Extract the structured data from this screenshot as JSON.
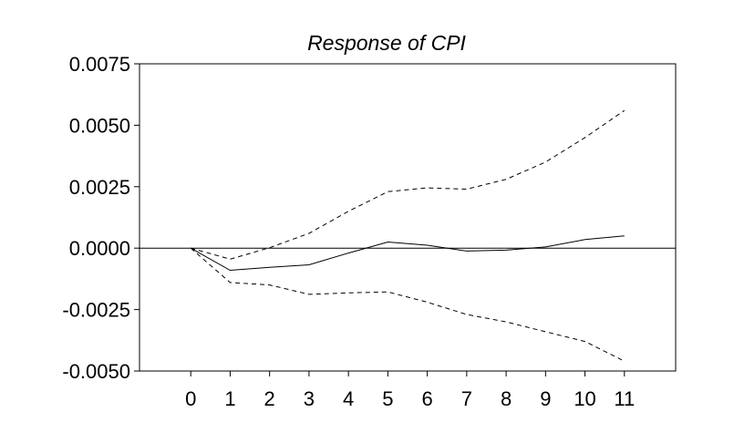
{
  "chart_data": {
    "type": "line",
    "title": "Response of CPI",
    "xlabel": "",
    "ylabel": "",
    "x": [
      0,
      1,
      2,
      3,
      4,
      5,
      6,
      7,
      8,
      9,
      10,
      11
    ],
    "x_tick_labels": [
      "0",
      "1",
      "2",
      "3",
      "4",
      "5",
      "6",
      "7",
      "8",
      "9",
      "10",
      "11"
    ],
    "xlim": [
      -1.3,
      12.3
    ],
    "ylim": [
      -0.005,
      0.0075
    ],
    "y_ticks": [
      0.0075,
      0.005,
      0.0025,
      0.0,
      -0.0025,
      -0.005
    ],
    "y_tick_labels": [
      "0.0075",
      "0.0050",
      "0.0025",
      "0.0000",
      "-0.0025",
      "-0.0050"
    ],
    "grid": false,
    "zero_line": true,
    "series": [
      {
        "style": "solid",
        "color": "#000000",
        "values": [
          0.0,
          -0.0009,
          -0.00078,
          -0.00068,
          -0.0002,
          0.00025,
          0.00012,
          -0.00012,
          -8e-05,
          5e-05,
          0.00035,
          0.0005
        ]
      },
      {
        "style": "dashed",
        "color": "#000000",
        "values": [
          0.0,
          -0.00045,
          2e-05,
          0.0006,
          0.0015,
          0.0023,
          0.00245,
          0.0024,
          0.0028,
          0.0035,
          0.0045,
          0.0056
        ]
      },
      {
        "style": "dashed",
        "color": "#000000",
        "values": [
          0.0,
          -0.0014,
          -0.0015,
          -0.00188,
          -0.00182,
          -0.00178,
          -0.0022,
          -0.0027,
          -0.003,
          -0.0034,
          -0.0038,
          -0.0046
        ]
      }
    ]
  }
}
